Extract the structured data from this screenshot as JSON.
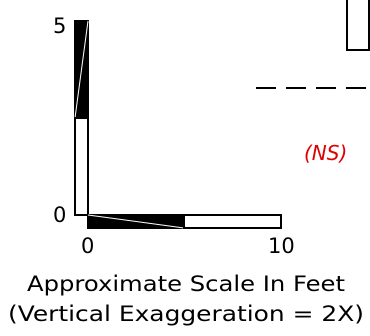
{
  "scale_bar": {
    "vertical": {
      "top_label": "5",
      "bottom_label": "0"
    },
    "horizontal": {
      "left_label": "0",
      "right_label": "10"
    },
    "caption_line1": "Approximate Scale In Feet",
    "caption_line2": "(Vertical Exaggeration = 2X)"
  },
  "annotation": {
    "ns_label": "(NS)",
    "ns_color": "#e00000"
  }
}
